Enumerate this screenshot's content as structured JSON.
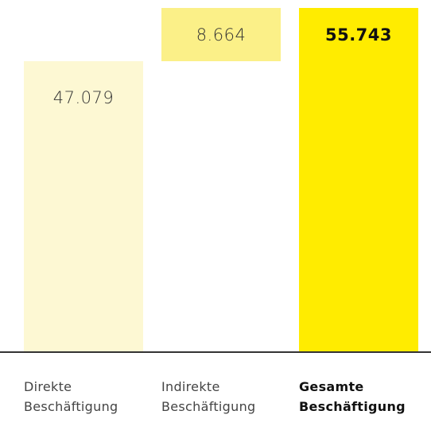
{
  "chart_data": {
    "type": "waterfall",
    "categories": [
      "Direkte\nBeschäftigung",
      "Indirekte\nBeschäftigung",
      "Gesamte\nBeschäftigung"
    ],
    "measure": [
      "absolute",
      "relative",
      "total"
    ],
    "values": [
      47079,
      8664,
      55743
    ],
    "value_labels": [
      "47.079",
      "8.664",
      "55.743"
    ],
    "colors": [
      "#fdf8d3",
      "#fbf088",
      "#ffec00"
    ]
  }
}
